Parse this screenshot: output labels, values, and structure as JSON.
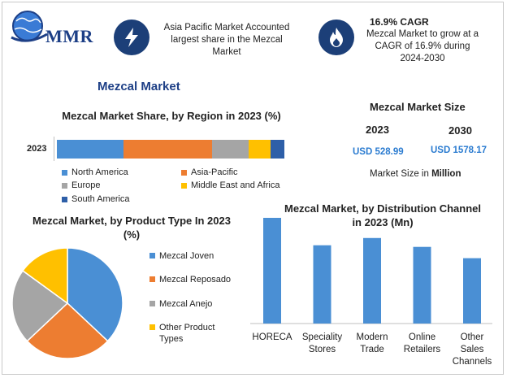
{
  "header": {
    "logo_text": "MMR",
    "highlight1": "Asia Pacific Market Accounted largest share in the Mezcal Market",
    "highlight2_title": "16.9% CAGR",
    "highlight2_text": "Mezcal Market to grow at a CAGR of 16.9% during 2024-2030",
    "icon1": "lightning-icon",
    "icon2": "flame-icon"
  },
  "main_title": "Mezcal Market",
  "market_size": {
    "title": "Mezcal Market Size",
    "year1": "2023",
    "year2": "2030",
    "value1": "USD 528.99",
    "value2": "USD 1578.17",
    "unit_prefix": "Market Size in ",
    "unit_bold": "Million"
  },
  "colors": {
    "north_america": "#4a8fd4",
    "asia_pacific": "#ed7d31",
    "europe": "#a5a5a5",
    "mea": "#ffc000",
    "south_america": "#2e5fa8",
    "bar_blue": "#4a8fd4",
    "navy": "#1c3f78"
  },
  "chart_data": [
    {
      "type": "bar",
      "orientation": "horizontal",
      "stacked": true,
      "title": "Mezcal Market Share, by Region in 2023 (%)",
      "categories": [
        "2023"
      ],
      "series": [
        {
          "name": "North America",
          "values": [
            24
          ]
        },
        {
          "name": "Asia-Pacific",
          "values": [
            32
          ]
        },
        {
          "name": "Europe",
          "values": [
            13
          ]
        },
        {
          "name": "Middle East and Africa",
          "values": [
            8
          ]
        },
        {
          "name": "South America",
          "values": [
            5
          ]
        }
      ],
      "xlim": [
        0,
        82
      ],
      "legend": "bottom"
    },
    {
      "type": "pie",
      "title": "Mezcal Market, by Product Type In 2023 (%)",
      "labels": [
        "Mezcal Joven",
        "Mezcal Reposado",
        "Mezcal Anejo",
        "Other Product Types"
      ],
      "values": [
        37,
        26,
        22,
        15
      ],
      "legend": "right"
    },
    {
      "type": "bar",
      "title": "Mezcal Market, by Distribution Channel in 2023 (Mn)",
      "categories": [
        "HORECA",
        "Speciality Stores",
        "Modern Trade",
        "Online Retailers",
        "Other Sales Channels"
      ],
      "values": [
        131,
        97,
        106,
        95,
        81
      ],
      "ylim": [
        0,
        135
      ],
      "grid": false
    }
  ]
}
